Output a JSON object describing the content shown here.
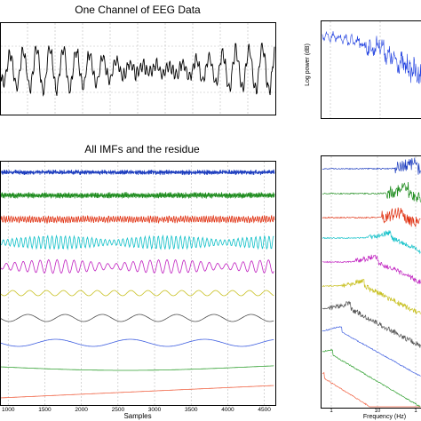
{
  "figure": {
    "top_left_title": "One Channel of EEG Data",
    "middle_left_title": "All IMFs and the residue",
    "top_right_ylabel": "Log power (dB)",
    "bottom_left_xlabel": "Samples",
    "bottom_right_xlabel": "Frequency (Hz)"
  },
  "chart_data": [
    {
      "type": "line",
      "title": "One Channel of EEG Data",
      "xlabel": "",
      "ylabel": "",
      "grid": true,
      "series": [
        {
          "color": "#000000",
          "style": "oscillatory EEG trace"
        }
      ]
    },
    {
      "type": "line",
      "title": "",
      "xlabel": "",
      "ylabel": "Log power (dB)",
      "x_scale": "log",
      "grid": true,
      "series": [
        {
          "color": "#2040e0",
          "style": "power spectrum"
        }
      ]
    },
    {
      "type": "line",
      "title": "All IMFs and the residue",
      "xlabel": "Samples",
      "ylabel": "",
      "x_ticks": [
        "1000",
        "1500",
        "2000",
        "2500",
        "3000",
        "3500",
        "4000",
        "4500"
      ],
      "xlim": [
        900,
        4650
      ],
      "grid": true,
      "series": [
        {
          "color": "#1f3fbf"
        },
        {
          "color": "#1a8a1a"
        },
        {
          "color": "#e03010"
        },
        {
          "color": "#10c0c8"
        },
        {
          "color": "#c020c0"
        },
        {
          "color": "#c8c020"
        },
        {
          "color": "#505050"
        },
        {
          "color": "#4060e0"
        },
        {
          "color": "#30a030"
        },
        {
          "color": "#f06040"
        }
      ]
    },
    {
      "type": "line",
      "title": "",
      "xlabel": "Frequency (Hz)",
      "ylabel": "",
      "x_scale": "log",
      "x_ticks": [
        "1",
        "10",
        "1"
      ],
      "grid": true,
      "series": [
        {
          "color": "#1f3fbf"
        },
        {
          "color": "#1a8a1a"
        },
        {
          "color": "#e03010"
        },
        {
          "color": "#10c0c8"
        },
        {
          "color": "#c020c0"
        },
        {
          "color": "#c8c020"
        },
        {
          "color": "#505050"
        },
        {
          "color": "#4060e0"
        },
        {
          "color": "#30a030"
        },
        {
          "color": "#f06040"
        }
      ]
    }
  ]
}
